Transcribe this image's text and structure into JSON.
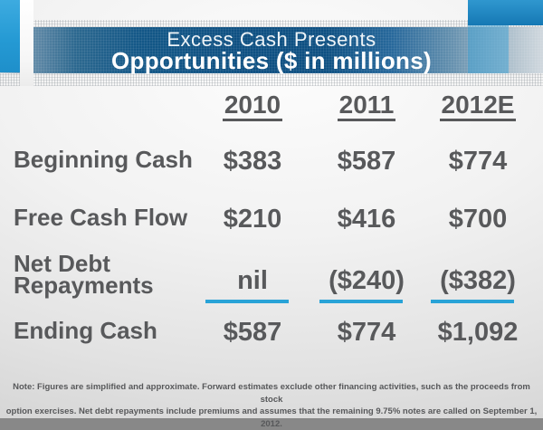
{
  "header": {
    "title_line1": "Excess Cash Presents",
    "title_line2": "Opportunities ($ in millions)"
  },
  "table": {
    "columns": [
      "2010",
      "2011",
      "2012E"
    ],
    "rows": [
      {
        "label": "Beginning Cash",
        "values": [
          "$383",
          "$587",
          "$774"
        ]
      },
      {
        "label": "Free Cash Flow",
        "values": [
          "$210",
          "$416",
          "$700"
        ]
      },
      {
        "label": "Net Debt Repayments",
        "values": [
          "nil",
          "($240)",
          "($382)"
        ]
      },
      {
        "label": "Ending Cash",
        "values": [
          "$587",
          "$774",
          "$1,092"
        ]
      }
    ]
  },
  "note": {
    "lines": [
      "Note: Figures are simplified and approximate. Forward estimates exclude other financing activities, such as the proceeds from stock",
      "option exercises. Net debt repayments include premiums and assumes that the remaining 9.75% notes are called on September 1, 2012."
    ]
  },
  "colors": {
    "banner_blue": "#0e5082",
    "accent_cyan": "#29a3d7",
    "text_gray": "#58595b",
    "deco_blue_left": "#2b9fd8",
    "deco_blue_topright": "#1578b4"
  }
}
